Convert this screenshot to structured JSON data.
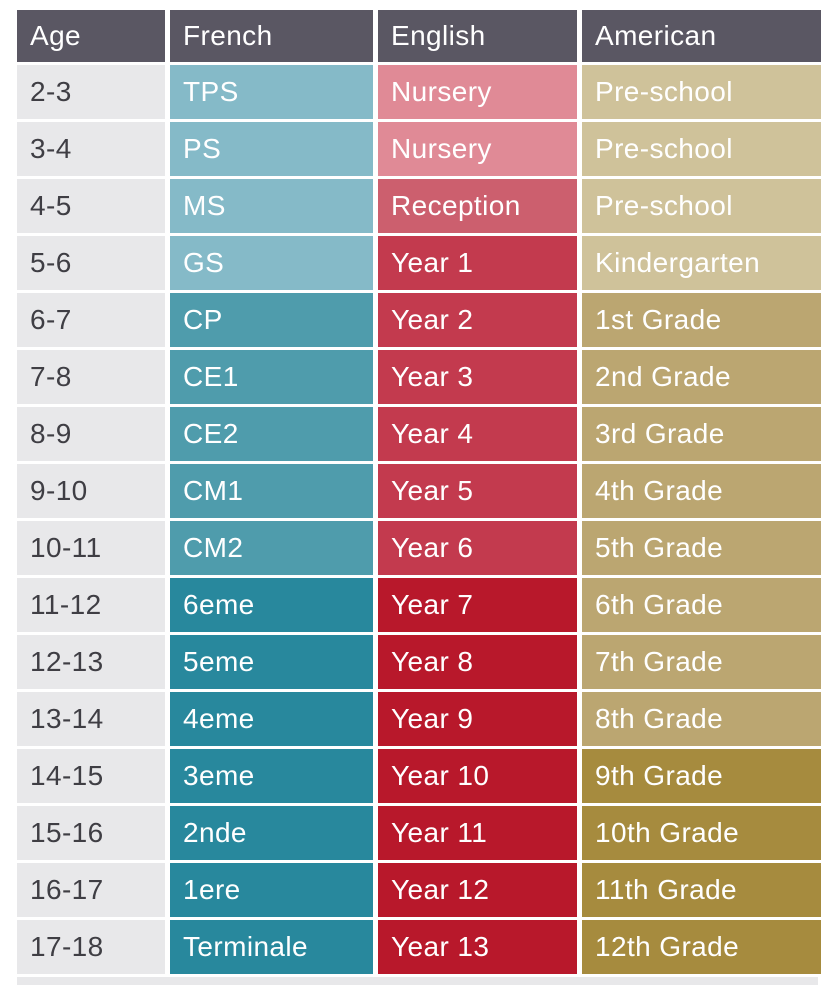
{
  "table": {
    "headers": {
      "age": "Age",
      "french": "French",
      "english": "English",
      "american": "American"
    },
    "rows": [
      {
        "age": "2-3",
        "french": "TPS",
        "french_shade": "teal_light",
        "english": "Nursery",
        "english_shade": "red_light",
        "american": "Pre-school",
        "american_shade": "gold_light"
      },
      {
        "age": "3-4",
        "french": "PS",
        "french_shade": "teal_light",
        "english": "Nursery",
        "english_shade": "red_light",
        "american": "Pre-school",
        "american_shade": "gold_light"
      },
      {
        "age": "4-5",
        "french": "MS",
        "french_shade": "teal_light",
        "english": "Reception",
        "english_shade": "red_mid",
        "american": "Pre-school",
        "american_shade": "gold_light"
      },
      {
        "age": "5-6",
        "french": "GS",
        "french_shade": "teal_light",
        "english": "Year 1",
        "english_shade": "red_medium",
        "american": "Kindergarten",
        "american_shade": "gold_light"
      },
      {
        "age": "6-7",
        "french": "CP",
        "french_shade": "teal_medium",
        "english": "Year 2",
        "english_shade": "red_medium",
        "american": "1st Grade",
        "american_shade": "gold_medium"
      },
      {
        "age": "7-8",
        "french": "CE1",
        "french_shade": "teal_medium",
        "english": "Year 3",
        "english_shade": "red_medium",
        "american": "2nd Grade",
        "american_shade": "gold_medium"
      },
      {
        "age": "8-9",
        "french": "CE2",
        "french_shade": "teal_medium",
        "english": "Year 4",
        "english_shade": "red_medium",
        "american": "3rd Grade",
        "american_shade": "gold_medium"
      },
      {
        "age": "9-10",
        "french": "CM1",
        "french_shade": "teal_medium",
        "english": "Year 5",
        "english_shade": "red_medium",
        "american": "4th Grade",
        "american_shade": "gold_medium"
      },
      {
        "age": "10-11",
        "french": "CM2",
        "french_shade": "teal_medium",
        "english": "Year 6",
        "english_shade": "red_medium",
        "american": "5th Grade",
        "american_shade": "gold_medium"
      },
      {
        "age": "11-12",
        "french": "6eme",
        "french_shade": "teal_dark",
        "english": "Year 7",
        "english_shade": "red_dark",
        "american": "6th Grade",
        "american_shade": "gold_medium"
      },
      {
        "age": "12-13",
        "french": "5eme",
        "french_shade": "teal_dark",
        "english": "Year 8",
        "english_shade": "red_dark",
        "american": "7th Grade",
        "american_shade": "gold_medium"
      },
      {
        "age": "13-14",
        "french": "4eme",
        "french_shade": "teal_dark",
        "english": "Year 9",
        "english_shade": "red_dark",
        "american": "8th Grade",
        "american_shade": "gold_medium"
      },
      {
        "age": "14-15",
        "french": "3eme",
        "french_shade": "teal_dark",
        "english": "Year 10",
        "english_shade": "red_dark",
        "american": "9th Grade",
        "american_shade": "gold_dark"
      },
      {
        "age": "15-16",
        "french": "2nde",
        "french_shade": "teal_dark",
        "english": "Year 11",
        "english_shade": "red_dark",
        "american": "10th Grade",
        "american_shade": "gold_dark"
      },
      {
        "age": "16-17",
        "french": "1ere",
        "french_shade": "teal_dark",
        "english": "Year 12",
        "english_shade": "red_dark",
        "american": "11th Grade",
        "american_shade": "gold_dark"
      },
      {
        "age": "17-18",
        "french": "Terminale",
        "french_shade": "teal_dark",
        "english": "Year 13",
        "english_shade": "red_dark",
        "american": "12th Grade",
        "american_shade": "gold_dark"
      }
    ]
  },
  "colors": {
    "header_bg": "#5a5763",
    "age_bg": "#e8e8ea",
    "teal_light": "#85bac8",
    "teal_medium": "#4f9cac",
    "teal_dark": "#28889d",
    "red_light": "#e08a96",
    "red_mid": "#cc5f6e",
    "red_medium": "#c33a4e",
    "red_dark": "#b8182b",
    "gold_light": "#cfc29a",
    "gold_medium": "#bba671",
    "gold_dark": "#a68b3e"
  }
}
